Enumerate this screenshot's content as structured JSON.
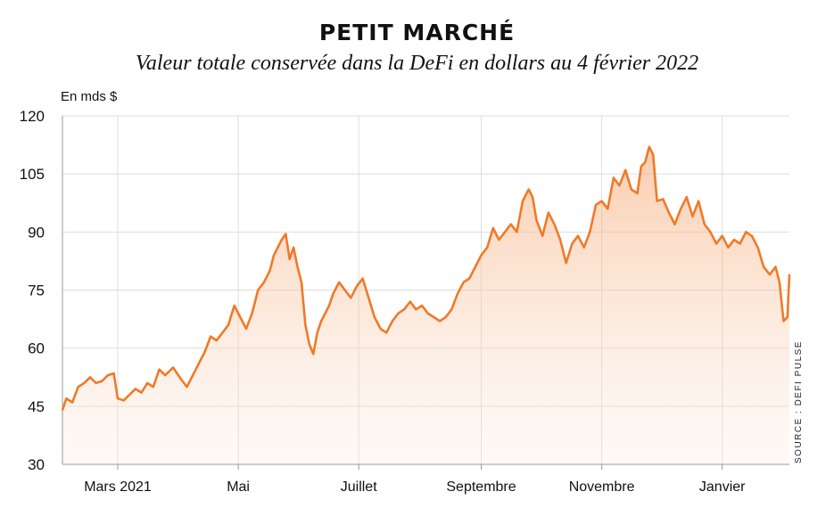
{
  "chart_data": {
    "type": "area",
    "title": "PETIT MARCHÉ",
    "subtitle": "Valeur totale conservée dans la DeFi en dollars au 4 février 2022",
    "ylabel": "En mds $",
    "source": "SOURCE : DEFI PULSE",
    "ylim": [
      30,
      120
    ],
    "yticks": [
      30,
      45,
      60,
      75,
      90,
      105,
      120
    ],
    "x_range": [
      "2021-02-01",
      "2022-02-04"
    ],
    "xticks": [
      {
        "date": "2021-03-01",
        "label": "Mars 2021"
      },
      {
        "date": "2021-05-01",
        "label": "Mai"
      },
      {
        "date": "2021-07-01",
        "label": "Juillet"
      },
      {
        "date": "2021-09-01",
        "label": "Septembre"
      },
      {
        "date": "2021-11-01",
        "label": "Novembre"
      },
      {
        "date": "2022-01-01",
        "label": "Janvier"
      }
    ],
    "grid": "vertical and horizontal",
    "line_color": "#f07a28",
    "series": [
      {
        "points": [
          [
            "2021-02-01",
            44
          ],
          [
            "2021-02-03",
            47
          ],
          [
            "2021-02-06",
            46
          ],
          [
            "2021-02-09",
            50
          ],
          [
            "2021-02-12",
            51
          ],
          [
            "2021-02-15",
            52.5
          ],
          [
            "2021-02-18",
            51
          ],
          [
            "2021-02-21",
            51.5
          ],
          [
            "2021-02-24",
            53
          ],
          [
            "2021-02-27",
            53.5
          ],
          [
            "2021-03-01",
            47
          ],
          [
            "2021-03-04",
            46.5
          ],
          [
            "2021-03-07",
            48
          ],
          [
            "2021-03-10",
            49.5
          ],
          [
            "2021-03-13",
            48.5
          ],
          [
            "2021-03-16",
            51
          ],
          [
            "2021-03-19",
            50
          ],
          [
            "2021-03-22",
            54.5
          ],
          [
            "2021-03-25",
            53
          ],
          [
            "2021-03-29",
            55
          ],
          [
            "2021-04-02",
            52
          ],
          [
            "2021-04-05",
            50
          ],
          [
            "2021-04-08",
            53
          ],
          [
            "2021-04-11",
            56
          ],
          [
            "2021-04-14",
            59
          ],
          [
            "2021-04-17",
            63
          ],
          [
            "2021-04-20",
            62
          ],
          [
            "2021-04-23",
            64
          ],
          [
            "2021-04-26",
            66
          ],
          [
            "2021-04-29",
            71
          ],
          [
            "2021-05-02",
            68
          ],
          [
            "2021-05-05",
            65
          ],
          [
            "2021-05-08",
            69
          ],
          [
            "2021-05-11",
            75
          ],
          [
            "2021-05-14",
            77
          ],
          [
            "2021-05-17",
            80
          ],
          [
            "2021-05-19",
            84
          ],
          [
            "2021-05-21",
            86
          ],
          [
            "2021-05-23",
            88
          ],
          [
            "2021-05-25",
            89.5
          ],
          [
            "2021-05-27",
            83
          ],
          [
            "2021-05-29",
            86
          ],
          [
            "2021-05-31",
            81
          ],
          [
            "2021-06-02",
            77
          ],
          [
            "2021-06-04",
            66
          ],
          [
            "2021-06-06",
            61
          ],
          [
            "2021-06-08",
            58.5
          ],
          [
            "2021-06-10",
            64
          ],
          [
            "2021-06-12",
            67
          ],
          [
            "2021-06-14",
            69
          ],
          [
            "2021-06-16",
            71
          ],
          [
            "2021-06-18",
            74
          ],
          [
            "2021-06-21",
            77
          ],
          [
            "2021-06-24",
            75
          ],
          [
            "2021-06-27",
            73
          ],
          [
            "2021-06-30",
            76
          ],
          [
            "2021-07-03",
            78
          ],
          [
            "2021-07-06",
            73
          ],
          [
            "2021-07-09",
            68
          ],
          [
            "2021-07-12",
            65
          ],
          [
            "2021-07-15",
            64
          ],
          [
            "2021-07-18",
            67
          ],
          [
            "2021-07-21",
            69
          ],
          [
            "2021-07-24",
            70
          ],
          [
            "2021-07-27",
            72
          ],
          [
            "2021-07-30",
            70
          ],
          [
            "2021-08-02",
            71
          ],
          [
            "2021-08-05",
            69
          ],
          [
            "2021-08-08",
            68
          ],
          [
            "2021-08-11",
            67
          ],
          [
            "2021-08-14",
            68
          ],
          [
            "2021-08-17",
            70
          ],
          [
            "2021-08-20",
            74
          ],
          [
            "2021-08-23",
            77
          ],
          [
            "2021-08-26",
            78
          ],
          [
            "2021-08-29",
            81
          ],
          [
            "2021-09-01",
            84
          ],
          [
            "2021-09-04",
            86
          ],
          [
            "2021-09-07",
            91
          ],
          [
            "2021-09-10",
            88
          ],
          [
            "2021-09-13",
            90
          ],
          [
            "2021-09-16",
            92
          ],
          [
            "2021-09-19",
            90
          ],
          [
            "2021-09-22",
            98
          ],
          [
            "2021-09-25",
            101
          ],
          [
            "2021-09-27",
            99
          ],
          [
            "2021-09-29",
            93
          ],
          [
            "2021-10-02",
            89
          ],
          [
            "2021-10-05",
            95
          ],
          [
            "2021-10-08",
            92
          ],
          [
            "2021-10-11",
            88
          ],
          [
            "2021-10-14",
            82
          ],
          [
            "2021-10-17",
            87
          ],
          [
            "2021-10-20",
            89
          ],
          [
            "2021-10-23",
            86
          ],
          [
            "2021-10-26",
            90
          ],
          [
            "2021-10-29",
            97
          ],
          [
            "2021-11-01",
            98
          ],
          [
            "2021-11-04",
            96
          ],
          [
            "2021-11-07",
            104
          ],
          [
            "2021-11-10",
            102
          ],
          [
            "2021-11-13",
            106
          ],
          [
            "2021-11-16",
            101
          ],
          [
            "2021-11-19",
            100
          ],
          [
            "2021-11-21",
            107
          ],
          [
            "2021-11-23",
            108
          ],
          [
            "2021-11-25",
            112
          ],
          [
            "2021-11-27",
            110
          ],
          [
            "2021-11-29",
            98
          ],
          [
            "2021-12-02",
            98.5
          ],
          [
            "2021-12-05",
            95
          ],
          [
            "2021-12-08",
            92
          ],
          [
            "2021-12-11",
            96
          ],
          [
            "2021-12-14",
            99
          ],
          [
            "2021-12-17",
            94
          ],
          [
            "2021-12-20",
            98
          ],
          [
            "2021-12-23",
            92
          ],
          [
            "2021-12-26",
            90
          ],
          [
            "2021-12-29",
            87
          ],
          [
            "2022-01-01",
            89
          ],
          [
            "2022-01-04",
            86
          ],
          [
            "2022-01-07",
            88
          ],
          [
            "2022-01-10",
            87
          ],
          [
            "2022-01-13",
            90
          ],
          [
            "2022-01-16",
            89
          ],
          [
            "2022-01-19",
            86
          ],
          [
            "2022-01-22",
            81
          ],
          [
            "2022-01-25",
            79
          ],
          [
            "2022-01-28",
            81
          ],
          [
            "2022-01-30",
            77
          ],
          [
            "2022-02-01",
            67
          ],
          [
            "2022-02-03",
            68
          ],
          [
            "2022-02-04",
            79
          ]
        ]
      }
    ]
  }
}
